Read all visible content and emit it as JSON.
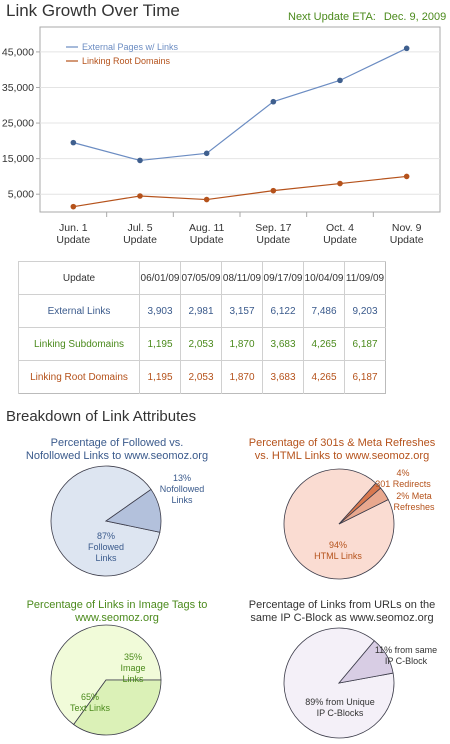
{
  "page": {
    "title": "Link Growth Over Time",
    "eta_label": "Next Update ETA:",
    "eta_date": "Dec. 9, 2009",
    "breakdown_title": "Breakdown of Link Attributes"
  },
  "colors": {
    "external": "#6b8cc2",
    "root": "#b5521b",
    "sub": "#4b8a1c",
    "followed": "#dde5f1",
    "nofollowed": "#b3c1dc",
    "html_links": "#fadcd2",
    "redirects": "#e9a88e",
    "meta": "#d9794f",
    "text_links": "#f1fbd9",
    "image_links": "#dbf1b7",
    "unique_ip": "#f4f0f8",
    "same_ip": "#d8cde4"
  },
  "chart_data": [
    {
      "type": "line",
      "categories": [
        "Jun. 1\nUpdate",
        "Jul. 5\nUpdate",
        "Aug. 11\nUpdate",
        "Sep. 17\nUpdate",
        "Oct. 4\nUpdate",
        "Nov. 9\nUpdate"
      ],
      "y_ticks": [
        "5,000",
        "15,000",
        "25,000",
        "35,000",
        "45,000"
      ],
      "ylim": [
        0,
        52000
      ],
      "grid": true,
      "legend_position": "top-left",
      "series": [
        {
          "name": "External Pages w/ Links",
          "color": "#6b8cc2",
          "values": [
            19500,
            14500,
            16500,
            31000,
            37000,
            46000
          ]
        },
        {
          "name": "Linking Root Domains",
          "color": "#b5521b",
          "values": [
            1500,
            4500,
            3500,
            6000,
            8000,
            10000
          ]
        }
      ]
    },
    {
      "type": "table",
      "header": [
        "Update",
        "06/01/09",
        "07/05/09",
        "08/11/09",
        "09/17/09",
        "10/04/09",
        "11/09/09"
      ],
      "rows": [
        {
          "label": "External Links",
          "values": [
            "3,903",
            "2,981",
            "3,157",
            "6,122",
            "7,486",
            "9,203"
          ]
        },
        {
          "label": "Linking Subdomains",
          "values": [
            "1,195",
            "2,053",
            "1,870",
            "3,683",
            "4,265",
            "6,187"
          ]
        },
        {
          "label": "Linking Root Domains",
          "values": [
            "1,195",
            "2,053",
            "1,870",
            "3,683",
            "4,265",
            "6,187"
          ]
        }
      ]
    },
    {
      "type": "pie",
      "title": "Percentage of Followed vs. Nofollowed Links to www.seomoz.org",
      "slices": [
        {
          "label": "87%\nFollowed\nLinks",
          "value": 87,
          "color": "#dde5f1"
        },
        {
          "label": "13%\nNofollowed\nLinks",
          "value": 13,
          "color": "#b3c1dc"
        }
      ]
    },
    {
      "type": "pie",
      "title": "Percentage of 301s & Meta Refreshes vs. HTML Links to www.seomoz.org",
      "slices": [
        {
          "label": "94%\nHTML Links",
          "value": 94,
          "color": "#fadcd2"
        },
        {
          "label": "4%\n301 Redirects",
          "value": 4,
          "color": "#e9a88e"
        },
        {
          "label": "2% Meta\nRefreshes",
          "value": 2,
          "color": "#d9794f"
        }
      ]
    },
    {
      "type": "pie",
      "title": "Percentage of Links in Image Tags to www.seomoz.org",
      "slices": [
        {
          "label": "65%\nText Links",
          "value": 65,
          "color": "#f1fbd9"
        },
        {
          "label": "35%\nImage\nLinks",
          "value": 35,
          "color": "#dbf1b7"
        }
      ]
    },
    {
      "type": "pie",
      "title": "Percentage of Links from URLs on the same IP C-Block as www.seomoz.org",
      "slices": [
        {
          "label": "89% from Unique\nIP C-Blocks",
          "value": 89,
          "color": "#f4f0f8"
        },
        {
          "label": "11% from same\nIP C-Block",
          "value": 11,
          "color": "#d8cde4"
        }
      ]
    }
  ]
}
